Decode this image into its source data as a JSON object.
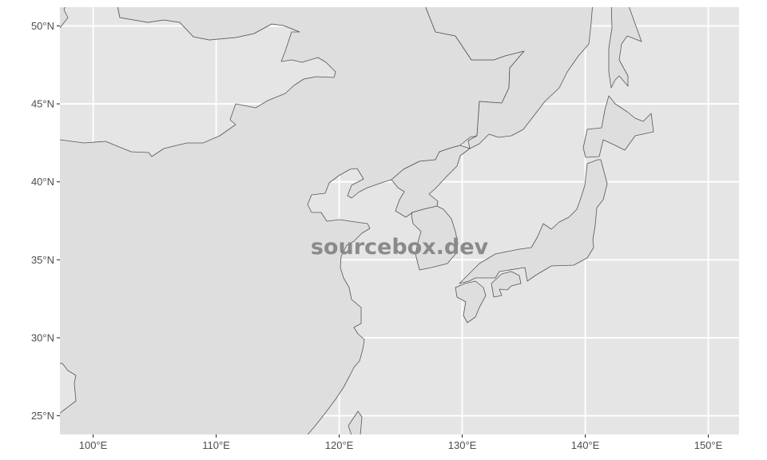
{
  "map": {
    "panel_background": "#e5e5e5",
    "land_fill": "#dedede",
    "border_color": "#555555",
    "grid_color": "#ffffff",
    "lon_range": [
      97.3,
      152.5
    ],
    "lat_range": [
      23.8,
      51.2
    ],
    "lon_ticks": [
      100,
      110,
      120,
      130,
      140,
      150
    ],
    "lat_ticks": [
      25,
      30,
      35,
      40,
      45,
      50
    ],
    "lon_tick_labels": [
      "100°E",
      "110°E",
      "120°E",
      "130°E",
      "140°E",
      "150°E"
    ],
    "lat_tick_labels": [
      "25°N",
      "30°N",
      "35°N",
      "40°N",
      "45°N",
      "50°N"
    ],
    "regions": [
      "China",
      "Mongolia",
      "Russia",
      "North Korea",
      "South Korea",
      "Japan"
    ]
  },
  "watermark": {
    "text": "sourcebox.dev"
  }
}
